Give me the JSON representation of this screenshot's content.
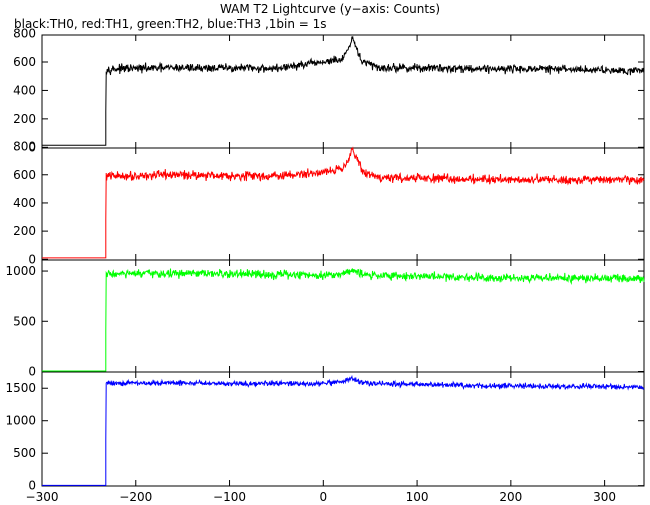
{
  "chart_data": {
    "type": "line",
    "title": "WAM T2 Lightcurve (y−axis: Counts)",
    "subtitle": "black:TH0, red:TH1, green:TH2, blue:TH3 ,1bin = 1s",
    "xlabel": "",
    "ylabel": "",
    "xlim": [
      -300,
      342
    ],
    "x_ticks": [
      -300,
      -200,
      -100,
      0,
      100,
      200,
      300
    ],
    "x_tick_labels": [
      "−300",
      "−200",
      "−100",
      "0",
      "100",
      "200",
      "300"
    ],
    "grid": false,
    "bin_seconds": 1,
    "step_time": -232,
    "panels": [
      {
        "name": "TH0",
        "color": "#000000",
        "ylim": [
          -5,
          790
        ],
        "y_ticks": [
          0,
          200,
          400,
          600,
          800
        ],
        "y_tick_labels": [
          "0",
          "200",
          "400",
          "600",
          "800"
        ],
        "pre_level": 15,
        "step_value": 250,
        "baseline": [
          [
            -232,
            550
          ],
          [
            -150,
            560
          ],
          [
            -50,
            555
          ],
          [
            -10,
            590
          ],
          [
            5,
            605
          ],
          [
            20,
            615
          ],
          [
            27,
            690
          ],
          [
            31,
            760
          ],
          [
            35,
            700
          ],
          [
            42,
            600
          ],
          [
            60,
            560
          ],
          [
            150,
            555
          ],
          [
            250,
            550
          ],
          [
            342,
            540
          ]
        ],
        "noise": 22
      },
      {
        "name": "TH1",
        "color": "#ff0000",
        "ylim": [
          -5,
          790
        ],
        "y_ticks": [
          0,
          200,
          400,
          600,
          800
        ],
        "y_tick_labels": [
          "0",
          "200",
          "400",
          "600",
          "800"
        ],
        "pre_level": 10,
        "step_value": 280,
        "baseline": [
          [
            -232,
            590
          ],
          [
            -150,
            600
          ],
          [
            -50,
            590
          ],
          [
            -10,
            610
          ],
          [
            5,
            630
          ],
          [
            20,
            640
          ],
          [
            27,
            720
          ],
          [
            31,
            790
          ],
          [
            35,
            720
          ],
          [
            42,
            620
          ],
          [
            60,
            580
          ],
          [
            150,
            570
          ],
          [
            250,
            565
          ],
          [
            342,
            560
          ]
        ],
        "noise": 24
      },
      {
        "name": "TH2",
        "color": "#00ff00",
        "ylim": [
          -5,
          1110
        ],
        "y_ticks": [
          0,
          500,
          1000
        ],
        "y_tick_labels": [
          "0",
          "500",
          "1000"
        ],
        "pre_level": 5,
        "step_value": 400,
        "baseline": [
          [
            -232,
            970
          ],
          [
            -150,
            975
          ],
          [
            -50,
            965
          ],
          [
            0,
            960
          ],
          [
            20,
            970
          ],
          [
            31,
            1020
          ],
          [
            36,
            990
          ],
          [
            42,
            960
          ],
          [
            150,
            940
          ],
          [
            250,
            930
          ],
          [
            342,
            925
          ]
        ],
        "noise": 32
      },
      {
        "name": "TH3",
        "color": "#0000ff",
        "ylim": [
          -5,
          1750
        ],
        "y_ticks": [
          0,
          500,
          1000,
          1500
        ],
        "y_tick_labels": [
          "0",
          "500",
          "1000",
          "1500"
        ],
        "pre_level": 5,
        "step_value": 700,
        "baseline": [
          [
            -232,
            1580
          ],
          [
            -150,
            1580
          ],
          [
            -50,
            1570
          ],
          [
            0,
            1570
          ],
          [
            20,
            1590
          ],
          [
            31,
            1660
          ],
          [
            36,
            1610
          ],
          [
            42,
            1580
          ],
          [
            150,
            1540
          ],
          [
            250,
            1530
          ],
          [
            342,
            1520
          ]
        ],
        "noise": 30
      }
    ]
  }
}
